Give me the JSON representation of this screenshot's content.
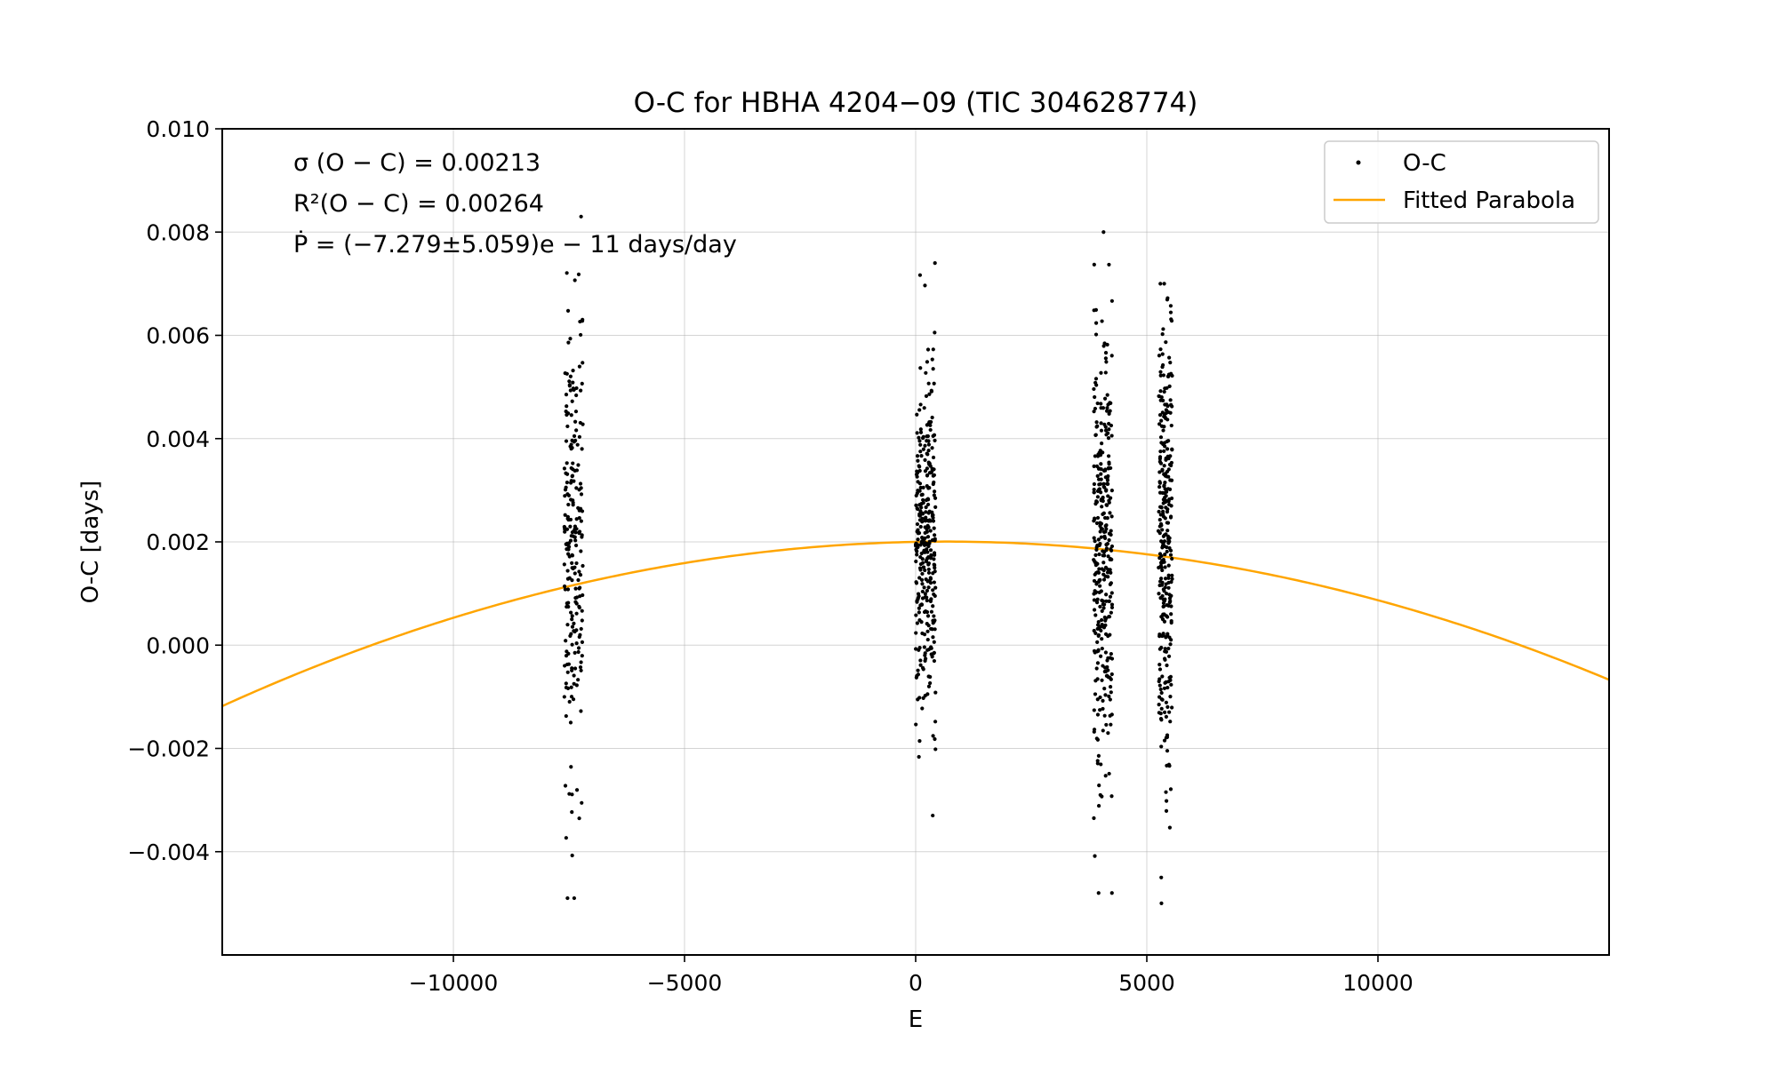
{
  "chart_data": {
    "type": "scatter",
    "title": "O-C for HBHA 4204−09 (TIC 304628774)",
    "xlabel": "E",
    "ylabel": "O-C [days]",
    "xlim": [
      -15000,
      15000
    ],
    "ylim": [
      -0.006,
      0.01
    ],
    "grid": true,
    "legend_position": "top-right",
    "x_ticks": [
      -10000,
      -5000,
      0,
      5000,
      10000
    ],
    "x_tick_labels": [
      "−10000",
      "−5000",
      "0",
      "5000",
      "10000"
    ],
    "y_ticks": [
      -0.004,
      -0.002,
      0.0,
      0.002,
      0.004,
      0.006,
      0.008,
      0.01
    ],
    "y_tick_labels": [
      "−0.004",
      "−0.002",
      "0.000",
      "0.002",
      "0.004",
      "0.006",
      "0.008",
      "0.010"
    ],
    "annotations": [
      "σ (O − C) = 0.00213",
      "R²(O − C) = 0.00264",
      "Ṗ = (−7.279±5.059)e − 11 days/day"
    ],
    "series": [
      {
        "name": "O-C",
        "kind": "scatter",
        "color": "#000000",
        "clusters": [
          {
            "e_range": [
              -7600,
              -7200
            ],
            "center": 0.0022,
            "spread": 0.0021,
            "min": -0.0049,
            "max": 0.0083,
            "count": 230
          },
          {
            "e_range": [
              0,
              430
            ],
            "center": 0.0022,
            "spread": 0.0017,
            "min": -0.0033,
            "max": 0.0074,
            "count": 330
          },
          {
            "e_range": [
              3850,
              4250
            ],
            "center": 0.0018,
            "spread": 0.0022,
            "min": -0.0048,
            "max": 0.008,
            "count": 330
          },
          {
            "e_range": [
              5250,
              5550
            ],
            "center": 0.002,
            "spread": 0.0021,
            "min": -0.005,
            "max": 0.007,
            "count": 300
          }
        ]
      },
      {
        "name": "Fitted Parabola",
        "kind": "line",
        "color": "#ffa500",
        "a": -1.3e-11,
        "b": 1.7e-08,
        "c": 0.002
      }
    ]
  }
}
